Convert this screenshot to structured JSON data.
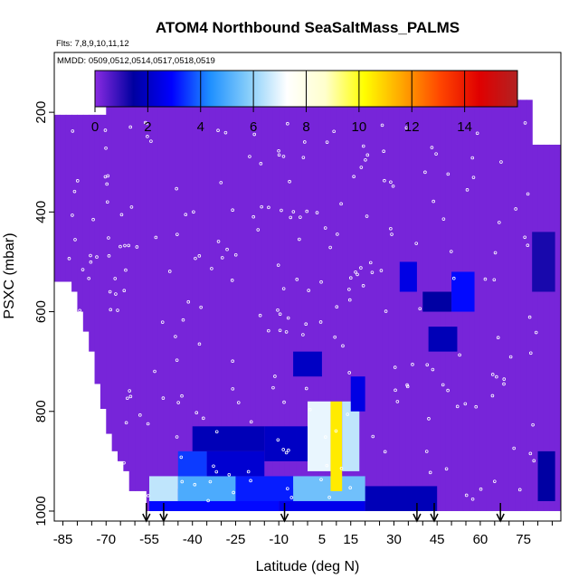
{
  "chart_data": {
    "type": "heatmap",
    "title": "ATOM4 Northbound SeaSaltMass_PALMS",
    "flights_label": "Flts: 7,8,9,10,11,12",
    "dates_label": "MMDD: 0509,0512,0514,0517,0518,0519",
    "xlabel": "Latitude (deg N)",
    "ylabel": "PSXC (mbar)",
    "xlim": [
      -88,
      88
    ],
    "ylim": [
      1020,
      80
    ],
    "x_ticks": [
      "-85",
      "-70",
      "-55",
      "-40",
      "-25",
      "-10",
      "5",
      "15",
      "30",
      "45",
      "60",
      "75"
    ],
    "y_ticks": [
      "200",
      "400",
      "600",
      "800",
      "1000"
    ],
    "colorbar": {
      "ticks": [
        "0",
        "2",
        "4",
        "6",
        "8",
        "10",
        "12",
        "14"
      ],
      "range": [
        0,
        16
      ],
      "colors": [
        "#8a2be2",
        "#0000a0",
        "#0000ff",
        "#1e90ff",
        "#87cefa",
        "#ffffff",
        "#ffffcc",
        "#ffff00",
        "#ffa500",
        "#ff4500",
        "#e00000",
        "#b22222"
      ]
    },
    "background_value": 0.2,
    "enhanced_regions": [
      {
        "lat": [
          -55,
          -10
        ],
        "p": [
          955,
          1000
        ],
        "value": 3.0
      },
      {
        "lat": [
          -10,
          20
        ],
        "p": [
          955,
          1000
        ],
        "value": 2.6
      },
      {
        "lat": [
          20,
          45
        ],
        "p": [
          950,
          1000
        ],
        "value": 1.8
      },
      {
        "lat": [
          -55,
          -45
        ],
        "p": [
          930,
          980
        ],
        "value": 6.5
      },
      {
        "lat": [
          -45,
          -25
        ],
        "p": [
          930,
          980
        ],
        "value": 5.0
      },
      {
        "lat": [
          -25,
          -5
        ],
        "p": [
          930,
          980
        ],
        "value": 3.2
      },
      {
        "lat": [
          -5,
          20
        ],
        "p": [
          930,
          980
        ],
        "value": 5.5
      },
      {
        "lat": [
          -45,
          -35
        ],
        "p": [
          880,
          930
        ],
        "value": 3.5
      },
      {
        "lat": [
          -35,
          -15
        ],
        "p": [
          880,
          930
        ],
        "value": 2.2
      },
      {
        "lat": [
          -40,
          -15
        ],
        "p": [
          830,
          880
        ],
        "value": 1.8
      },
      {
        "lat": [
          -15,
          0
        ],
        "p": [
          830,
          900
        ],
        "value": 2.0
      },
      {
        "lat": [
          0,
          8
        ],
        "p": [
          780,
          920
        ],
        "value": 7.0
      },
      {
        "lat": [
          8,
          12
        ],
        "p": [
          780,
          960
        ],
        "value": 10.5
      },
      {
        "lat": [
          12,
          18
        ],
        "p": [
          780,
          920
        ],
        "value": 6.5
      },
      {
        "lat": [
          -5,
          5
        ],
        "p": [
          680,
          730
        ],
        "value": 2.0
      },
      {
        "lat": [
          15,
          20
        ],
        "p": [
          730,
          800
        ],
        "value": 2.5
      },
      {
        "lat": [
          32,
          38
        ],
        "p": [
          500,
          560
        ],
        "value": 2.5
      },
      {
        "lat": [
          42,
          52
        ],
        "p": [
          630,
          680
        ],
        "value": 1.8
      },
      {
        "lat": [
          50,
          58
        ],
        "p": [
          520,
          600
        ],
        "value": 3.0
      },
      {
        "lat": [
          40,
          50
        ],
        "p": [
          560,
          600
        ],
        "value": 1.5
      },
      {
        "lat": [
          78,
          86
        ],
        "p": [
          440,
          560
        ],
        "value": 1.2
      },
      {
        "lat": [
          80,
          86
        ],
        "p": [
          880,
          980
        ],
        "value": 1.5
      }
    ],
    "flight_markers_lat": [
      -56,
      -50,
      -8,
      38,
      44,
      67
    ]
  }
}
